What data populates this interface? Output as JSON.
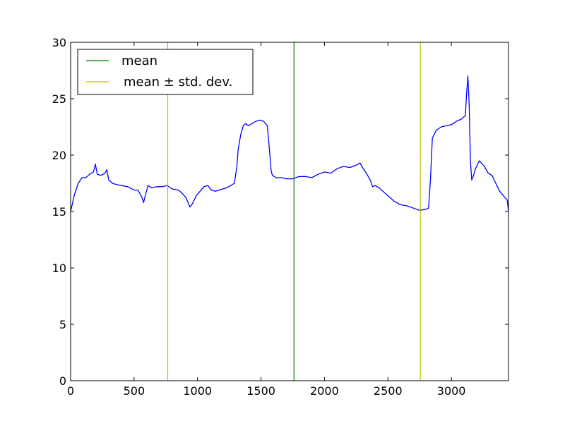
{
  "chart_data": {
    "type": "line",
    "title": "",
    "xlabel": "",
    "ylabel": "",
    "xlim": [
      0,
      3450
    ],
    "ylim": [
      0,
      30
    ],
    "grid": false,
    "legend_position": "top-left",
    "x_ticks": [
      0,
      500,
      1000,
      1500,
      2000,
      2500,
      3000
    ],
    "y_ticks": [
      0,
      5,
      10,
      15,
      20,
      25,
      30
    ],
    "legend": [
      {
        "label": "mean",
        "color": "#008000"
      },
      {
        "label": "mean ± std. dev.",
        "color": "#bfbf00"
      }
    ],
    "vlines": [
      {
        "x": 765,
        "color": "#bfbf00",
        "legend_entry": "mean ± std. dev."
      },
      {
        "x": 1760,
        "color": "#008000",
        "legend_entry": "mean"
      },
      {
        "x": 2755,
        "color": "#bfbf00",
        "legend_entry": "mean ± std. dev."
      }
    ],
    "series": [
      {
        "color": "#0000ff",
        "x": [
          0,
          30,
          60,
          90,
          120,
          150,
          180,
          195,
          210,
          240,
          270,
          285,
          300,
          330,
          360,
          400,
          450,
          500,
          530,
          560,
          575,
          590,
          610,
          640,
          680,
          720,
          760,
          800,
          850,
          880,
          910,
          940,
          960,
          990,
          1020,
          1050,
          1080,
          1110,
          1140,
          1170,
          1200,
          1230,
          1260,
          1290,
          1310,
          1320,
          1340,
          1360,
          1380,
          1400,
          1430,
          1460,
          1490,
          1520,
          1550,
          1570,
          1580,
          1590,
          1620,
          1660,
          1700,
          1750,
          1800,
          1850,
          1900,
          1950,
          2000,
          2050,
          2100,
          2150,
          2200,
          2250,
          2280,
          2300,
          2330,
          2360,
          2380,
          2400,
          2430,
          2460,
          2500,
          2550,
          2600,
          2650,
          2700,
          2750,
          2800,
          2820,
          2835,
          2850,
          2880,
          2920,
          2960,
          3000,
          3040,
          3080,
          3110,
          3120,
          3130,
          3140,
          3150,
          3160,
          3175,
          3190,
          3220,
          3260,
          3290,
          3320,
          3350,
          3380,
          3410,
          3440,
          3450
        ],
        "values": [
          15.0,
          16.5,
          17.5,
          18.0,
          18.0,
          18.3,
          18.5,
          19.2,
          18.3,
          18.2,
          18.4,
          18.7,
          17.8,
          17.5,
          17.4,
          17.3,
          17.2,
          16.9,
          16.9,
          16.3,
          15.8,
          16.5,
          17.3,
          17.1,
          17.2,
          17.2,
          17.3,
          17.0,
          16.9,
          16.6,
          16.2,
          15.4,
          15.7,
          16.4,
          16.8,
          17.2,
          17.3,
          16.9,
          16.8,
          16.9,
          17.0,
          17.1,
          17.3,
          17.5,
          19.0,
          20.5,
          21.8,
          22.6,
          22.8,
          22.6,
          22.8,
          23.0,
          23.1,
          23.0,
          22.6,
          20.0,
          18.6,
          18.2,
          18.0,
          18.0,
          17.9,
          17.9,
          18.1,
          18.1,
          18.0,
          18.3,
          18.5,
          18.4,
          18.8,
          19.0,
          18.9,
          19.1,
          19.3,
          18.9,
          18.4,
          17.8,
          17.2,
          17.3,
          17.1,
          16.8,
          16.4,
          15.9,
          15.6,
          15.5,
          15.3,
          15.1,
          15.2,
          15.3,
          17.8,
          21.5,
          22.2,
          22.5,
          22.6,
          22.7,
          23.0,
          23.2,
          23.5,
          25.5,
          27.0,
          24.5,
          19.5,
          17.8,
          18.2,
          18.8,
          19.5,
          19.0,
          18.4,
          18.2,
          17.5,
          16.8,
          16.4,
          16.0,
          15.0
        ]
      }
    ]
  }
}
